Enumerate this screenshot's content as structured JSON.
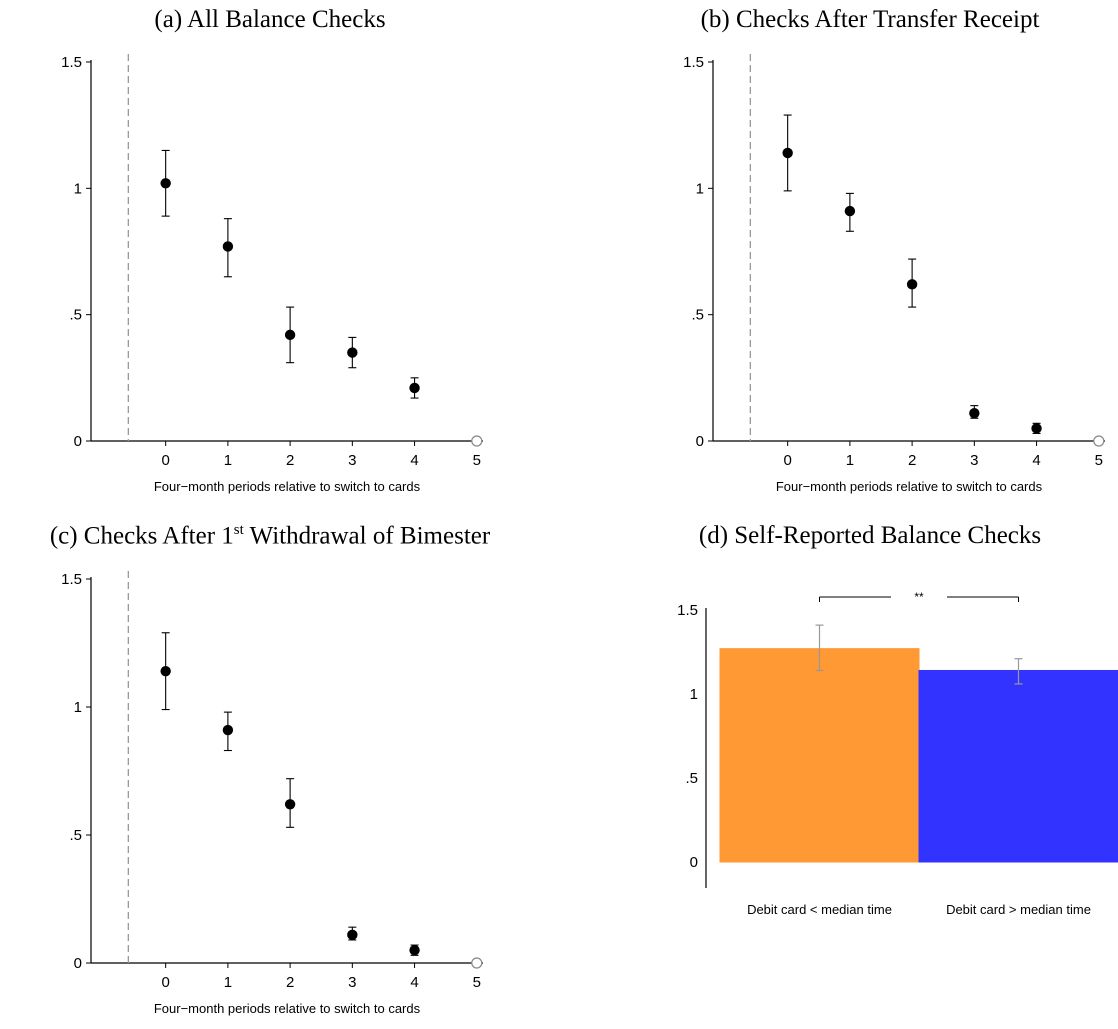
{
  "panels": {
    "a": {
      "title": "(a) All Balance Checks"
    },
    "b": {
      "title": "(b) Checks After Transfer Receipt"
    },
    "c": {
      "title_pre": "(c) Checks After 1",
      "title_sup": "st",
      "title_post": " Withdrawal of Bimester"
    },
    "d": {
      "title": "(d) Self-Reported Balance Checks"
    }
  },
  "chart_data": [
    {
      "type": "scatter",
      "title": "(a) All Balance Checks",
      "xlabel": "Four−month periods relative to switch to cards",
      "ylabel": "",
      "x_ticks": [
        "0",
        "1",
        "2",
        "3",
        "4",
        "5"
      ],
      "y_ticks": [
        "0",
        ".5",
        "1",
        "1.5"
      ],
      "xlim": [
        -1.2,
        5.1
      ],
      "ylim": [
        0,
        1.5
      ],
      "reference_line_x": -0.6,
      "grid": false,
      "points": [
        {
          "x": 0,
          "y": 1.02,
          "lo": 0.89,
          "hi": 1.15
        },
        {
          "x": 1,
          "y": 0.77,
          "lo": 0.65,
          "hi": 0.88
        },
        {
          "x": 2,
          "y": 0.42,
          "lo": 0.31,
          "hi": 0.53
        },
        {
          "x": 3,
          "y": 0.35,
          "lo": 0.29,
          "hi": 0.41
        },
        {
          "x": 4,
          "y": 0.21,
          "lo": 0.17,
          "hi": 0.25
        },
        {
          "x": 5,
          "y": 0.0,
          "lo": 0.0,
          "hi": 0.0,
          "hollow": true
        }
      ]
    },
    {
      "type": "scatter",
      "title": "(b) Checks After Transfer Receipt",
      "xlabel": "Four−month periods relative to switch to cards",
      "ylabel": "",
      "x_ticks": [
        "0",
        "1",
        "2",
        "3",
        "4",
        "5"
      ],
      "y_ticks": [
        "0",
        ".5",
        "1",
        "1.5"
      ],
      "xlim": [
        -1.2,
        5.1
      ],
      "ylim": [
        0,
        1.5
      ],
      "reference_line_x": -0.6,
      "grid": false,
      "points": [
        {
          "x": 0,
          "y": 1.14,
          "lo": 0.99,
          "hi": 1.29
        },
        {
          "x": 1,
          "y": 0.91,
          "lo": 0.83,
          "hi": 0.98
        },
        {
          "x": 2,
          "y": 0.62,
          "lo": 0.53,
          "hi": 0.72
        },
        {
          "x": 3,
          "y": 0.11,
          "lo": 0.09,
          "hi": 0.14
        },
        {
          "x": 4,
          "y": 0.05,
          "lo": 0.03,
          "hi": 0.07
        },
        {
          "x": 5,
          "y": 0.0,
          "lo": 0.0,
          "hi": 0.0,
          "hollow": true
        }
      ]
    },
    {
      "type": "scatter",
      "title": "(c) Checks After 1st Withdrawal of Bimester",
      "xlabel": "Four−month periods relative to switch to cards",
      "ylabel": "",
      "x_ticks": [
        "0",
        "1",
        "2",
        "3",
        "4",
        "5"
      ],
      "y_ticks": [
        "0",
        ".5",
        "1",
        "1.5"
      ],
      "xlim": [
        -1.2,
        5.1
      ],
      "ylim": [
        0,
        1.5
      ],
      "reference_line_x": -0.6,
      "grid": false,
      "points": [
        {
          "x": 0,
          "y": 1.14,
          "lo": 0.99,
          "hi": 1.29
        },
        {
          "x": 1,
          "y": 0.91,
          "lo": 0.83,
          "hi": 0.98
        },
        {
          "x": 2,
          "y": 0.62,
          "lo": 0.53,
          "hi": 0.72
        },
        {
          "x": 3,
          "y": 0.11,
          "lo": 0.09,
          "hi": 0.14
        },
        {
          "x": 4,
          "y": 0.05,
          "lo": 0.03,
          "hi": 0.07
        },
        {
          "x": 5,
          "y": 0.0,
          "lo": 0.0,
          "hi": 0.0,
          "hollow": true
        }
      ]
    },
    {
      "type": "bar",
      "title": "(d) Self-Reported Balance Checks",
      "xlabel": "",
      "ylabel": "",
      "categories": [
        "Debit card < median time",
        "Debit card > median time"
      ],
      "values": [
        1.27,
        1.14
      ],
      "ci": [
        [
          1.14,
          1.41
        ],
        [
          1.06,
          1.21
        ]
      ],
      "colors": [
        "#ff9933",
        "#3333ff"
      ],
      "y_ticks": [
        "0",
        ".5",
        "1",
        "1.5"
      ],
      "ylim": [
        0,
        1.5
      ],
      "significance": "**",
      "grid": false
    }
  ]
}
